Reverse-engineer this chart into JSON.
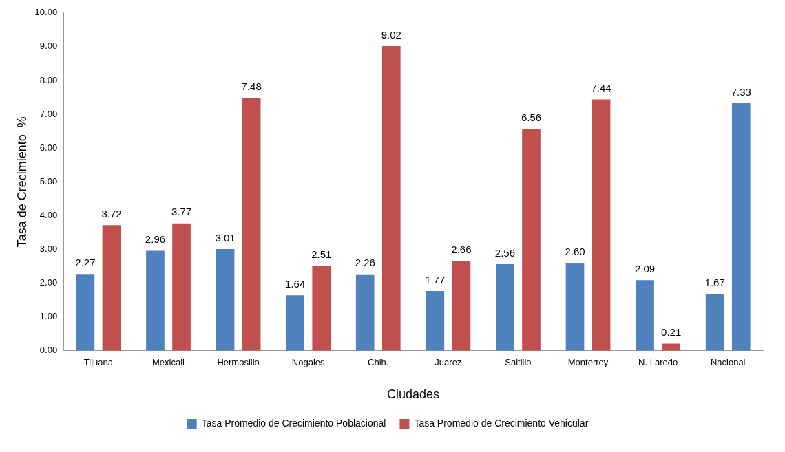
{
  "chart_data": {
    "type": "bar",
    "xlabel": "Ciudades",
    "ylabel": "Tasa de Crecimiento  %",
    "categories": [
      "Tijuana",
      "Mexicali",
      "Hermosillo",
      "Nogales",
      "Chih.",
      "Juarez",
      "Saltillo",
      "Monterrey",
      "N. Laredo",
      "Nacional"
    ],
    "series": [
      {
        "name": "Tasa Promedio de Crecimiento Poblacional",
        "color": "#4f81bd",
        "values": [
          2.27,
          2.96,
          3.01,
          1.64,
          2.26,
          1.77,
          2.56,
          2.6,
          2.09,
          1.67
        ],
        "value_labels": [
          "2.27",
          "2.96",
          "3.01",
          "1.64",
          "2.26",
          "1.77",
          "2.56",
          "2.60",
          "2.09",
          "1.67"
        ]
      },
      {
        "name": "Tasa Promedio de Crecimiento Vehicular",
        "color": "#c0504d",
        "colors": [
          "#c0504d",
          "#c0504d",
          "#c0504d",
          "#c0504d",
          "#c0504d",
          "#c0504d",
          "#c0504d",
          "#c0504d",
          "#c0504d",
          "#4f81bd"
        ],
        "values": [
          3.72,
          3.77,
          7.48,
          2.51,
          9.02,
          2.66,
          6.56,
          7.44,
          0.21,
          7.33
        ],
        "value_labels": [
          "3.72",
          "3.77",
          "7.48",
          "2.51",
          "9.02",
          "2.66",
          "6.56",
          "7.44",
          "0.21",
          "7.33"
        ]
      }
    ],
    "ylim": [
      0,
      10
    ],
    "yticks": [
      {
        "value": 0,
        "label": "0.00"
      },
      {
        "value": 1,
        "label": "1.00"
      },
      {
        "value": 2,
        "label": "2.00"
      },
      {
        "value": 3,
        "label": "3.00"
      },
      {
        "value": 4,
        "label": "4.00"
      },
      {
        "value": 5,
        "label": "5.00"
      },
      {
        "value": 6,
        "label": "6.00"
      },
      {
        "value": 7,
        "label": "7.00"
      },
      {
        "value": 8,
        "label": "8.00"
      },
      {
        "value": 9,
        "label": "9.00"
      },
      {
        "value": 10,
        "label": "10.00"
      }
    ],
    "grid": false,
    "legend": "bottom"
  }
}
